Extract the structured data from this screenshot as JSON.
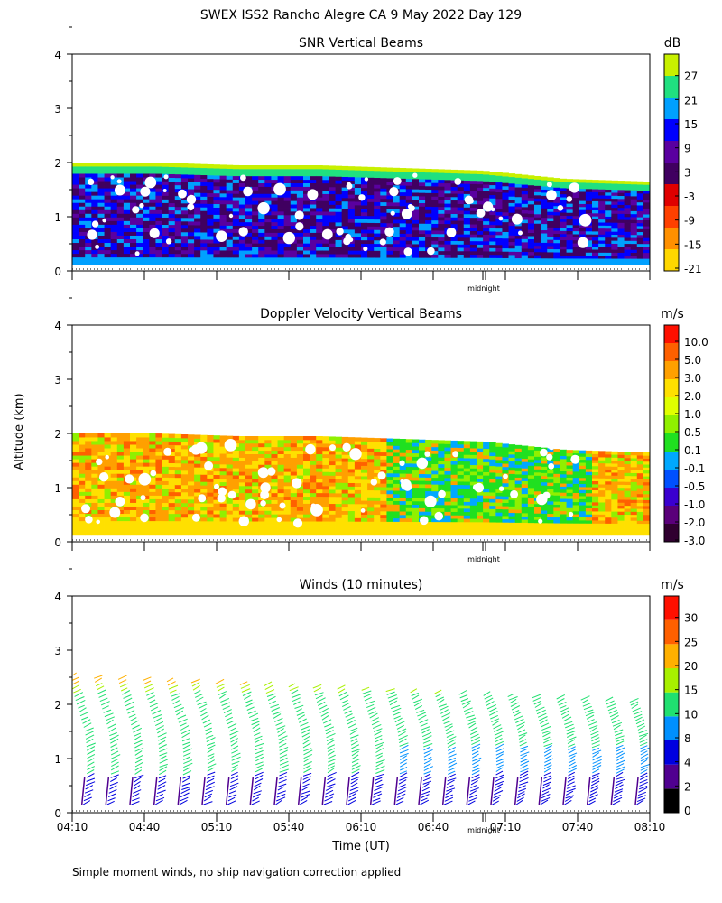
{
  "figure": {
    "title": "SWEX ISS2 Rancho Alegre CA   9 May 2022 Day 129",
    "ylabel": "Altitude (km)",
    "xlabel": "Time (UT)",
    "midnight_label": "midnight",
    "footnote": "Simple moment winds, no ship navigation correction applied",
    "y_ticks": [
      "0",
      "1",
      "2",
      "3",
      "4"
    ],
    "x_ticks": [
      "04:10",
      "04:40",
      "05:10",
      "05:40",
      "06:10",
      "06:40",
      "07:10",
      "07:40",
      "08:10"
    ]
  },
  "chart_data": [
    {
      "type": "heatmap",
      "title": "SNR Vertical Beams",
      "unit": "dB",
      "ylim": [
        0,
        4
      ],
      "xlim": [
        "04:10",
        "08:10"
      ],
      "colorbar_labels": [
        "27",
        "21",
        "15",
        "9",
        "3",
        "-3",
        "-9",
        "-15",
        "-21"
      ],
      "colorbar_colors": [
        "#ffd700",
        "#ff9000",
        "#ff4000",
        "#e00000",
        "#400060",
        "#5a00a0",
        "#0000ff",
        "#00a0ff",
        "#20e080",
        "#c8f000"
      ],
      "echo_top_km": [
        2.0,
        2.0,
        1.95,
        1.95,
        1.9,
        1.85,
        1.7,
        1.65
      ]
    },
    {
      "type": "heatmap",
      "title": "Doppler Velocity Vertical Beams",
      "unit": "m/s",
      "ylim": [
        0,
        4
      ],
      "xlim": [
        "04:10",
        "08:10"
      ],
      "colorbar_labels": [
        "10.0",
        "5.0",
        "3.0",
        "2.0",
        "1.0",
        "0.5",
        "0.1",
        "-0.1",
        "-0.5",
        "-1.0",
        "-2.0",
        "-3.0"
      ],
      "colorbar_colors": [
        "#300030",
        "#5a007a",
        "#3a00d0",
        "#0050ff",
        "#00a8ff",
        "#20e020",
        "#90f000",
        "#e0ff00",
        "#ffe000",
        "#ffa000",
        "#ff6000",
        "#ff1000"
      ],
      "echo_top_km": [
        2.0,
        2.0,
        1.95,
        1.95,
        1.9,
        1.85,
        1.7,
        1.65
      ]
    },
    {
      "type": "scatter",
      "title": "Winds (10 minutes)",
      "unit": "m/s",
      "ylim": [
        0,
        4
      ],
      "xlim": [
        "04:10",
        "08:10"
      ],
      "colorbar_labels": [
        "30",
        "25",
        "20",
        "15",
        "10",
        "8",
        "4",
        "2",
        "0"
      ],
      "colorbar_colors": [
        "#000000",
        "#500090",
        "#0000e0",
        "#0090ff",
        "#20e070",
        "#a8f000",
        "#ffb000",
        "#ff6000",
        "#ff1000"
      ],
      "wind_profile_times": [
        "04:14",
        "04:24",
        "04:34",
        "04:44",
        "04:54",
        "05:04",
        "05:14",
        "05:24",
        "05:34",
        "05:44",
        "05:54",
        "06:04",
        "06:14",
        "06:24",
        "06:34",
        "06:44",
        "06:54",
        "07:04",
        "07:14",
        "07:24",
        "07:34",
        "07:44",
        "07:54",
        "08:04"
      ]
    }
  ]
}
